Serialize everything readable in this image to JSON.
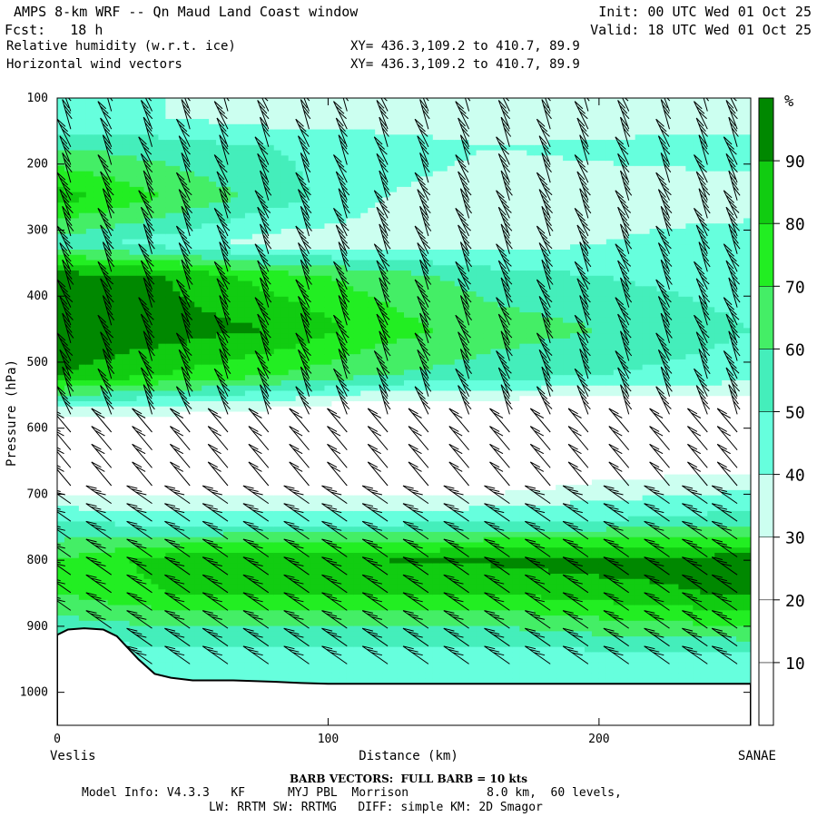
{
  "header": {
    "title": "AMPS 8-km WRF -- Qn Maud Land Coast window",
    "forecast": "Fcst:   18 h",
    "variable_contour": "Relative humidity (w.r.t. ice)",
    "variable_vectors": "Horizontal wind vectors",
    "init": "Init: 00 UTC Wed 01 Oct 25",
    "valid": "Valid: 18 UTC Wed 01 Oct 25",
    "xy_line_1": "XY= 436.3,109.2 to 410.7, 89.9",
    "xy_line_2": "XY= 436.3,109.2 to 410.7, 89.9"
  },
  "footer": {
    "barb_note": "BARB VECTORS:  FULL BARB = 10 kts",
    "model_info": "Model Info: V4.3.3   KF      MYJ PBL  Morrison           8.0 km,  60 levels,",
    "physics_info": "LW: RRTM SW: RRTMG   DIFF: simple KM: 2D Smagor"
  },
  "chart_data": {
    "type": "heatmap",
    "xlabel": "Distance (km)",
    "ylabel": "Pressure (hPa)",
    "x_ticks": [
      0,
      100,
      200
    ],
    "y_ticks": [
      100,
      200,
      300,
      400,
      500,
      600,
      700,
      800,
      900,
      1000
    ],
    "xlim": [
      0,
      256
    ],
    "ylim": [
      1050,
      100
    ],
    "endpoint_left": "Veslis",
    "endpoint_right": "SANAE",
    "colorbar": {
      "unit": "%",
      "tick_labels": [
        10,
        20,
        30,
        40,
        50,
        60,
        70,
        80,
        90
      ],
      "levels": [
        0,
        10,
        20,
        30,
        40,
        50,
        60,
        70,
        80,
        90,
        100
      ],
      "colors": [
        "#ffffff",
        "#ffffff",
        "#ffffff",
        "#ccfff0",
        "#66ffdd",
        "#44eebb",
        "#44ee66",
        "#22ee22",
        "#11cc11",
        "#008800"
      ]
    },
    "rh_x_km": [
      0,
      40,
      80,
      120,
      160,
      200,
      256
    ],
    "rh_p_hpa": [
      130,
      175,
      250,
      320,
      370,
      450,
      520,
      570,
      620,
      680,
      740,
      800,
      850,
      900,
      960
    ],
    "rh_percent": [
      [
        40,
        40,
        35,
        35,
        35,
        35,
        35
      ],
      [
        60,
        55,
        50,
        45,
        40,
        42,
        45
      ],
      [
        85,
        70,
        55,
        40,
        35,
        35,
        35
      ],
      [
        55,
        45,
        35,
        35,
        35,
        40,
        45
      ],
      [
        95,
        90,
        75,
        65,
        55,
        50,
        45
      ],
      [
        100,
        95,
        90,
        75,
        65,
        60,
        50
      ],
      [
        90,
        80,
        70,
        60,
        55,
        50,
        45
      ],
      [
        40,
        35,
        30,
        20,
        20,
        20,
        20
      ],
      [
        10,
        10,
        10,
        10,
        10,
        10,
        10
      ],
      [
        20,
        20,
        20,
        20,
        20,
        30,
        35
      ],
      [
        50,
        45,
        45,
        45,
        50,
        50,
        55
      ],
      [
        70,
        85,
        90,
        90,
        92,
        95,
        95
      ],
      [
        70,
        80,
        80,
        80,
        80,
        85,
        92
      ],
      [
        55,
        60,
        60,
        60,
        60,
        65,
        70
      ],
      [
        40,
        40,
        40,
        40,
        40,
        40,
        40
      ]
    ],
    "terrain_x_km": [
      0,
      4,
      10,
      17,
      22,
      30,
      36,
      42,
      50,
      65,
      80,
      90,
      100,
      150,
      200,
      256
    ],
    "terrain_p_hpa": [
      913,
      905,
      903,
      905,
      915,
      950,
      972,
      978,
      982,
      982,
      984,
      986,
      987,
      987,
      987,
      987
    ],
    "barb_columns_km": [
      5,
      20,
      35,
      49,
      63,
      78,
      93,
      107,
      122,
      137,
      152,
      167,
      182,
      196,
      211,
      226,
      240,
      251
    ]
  }
}
